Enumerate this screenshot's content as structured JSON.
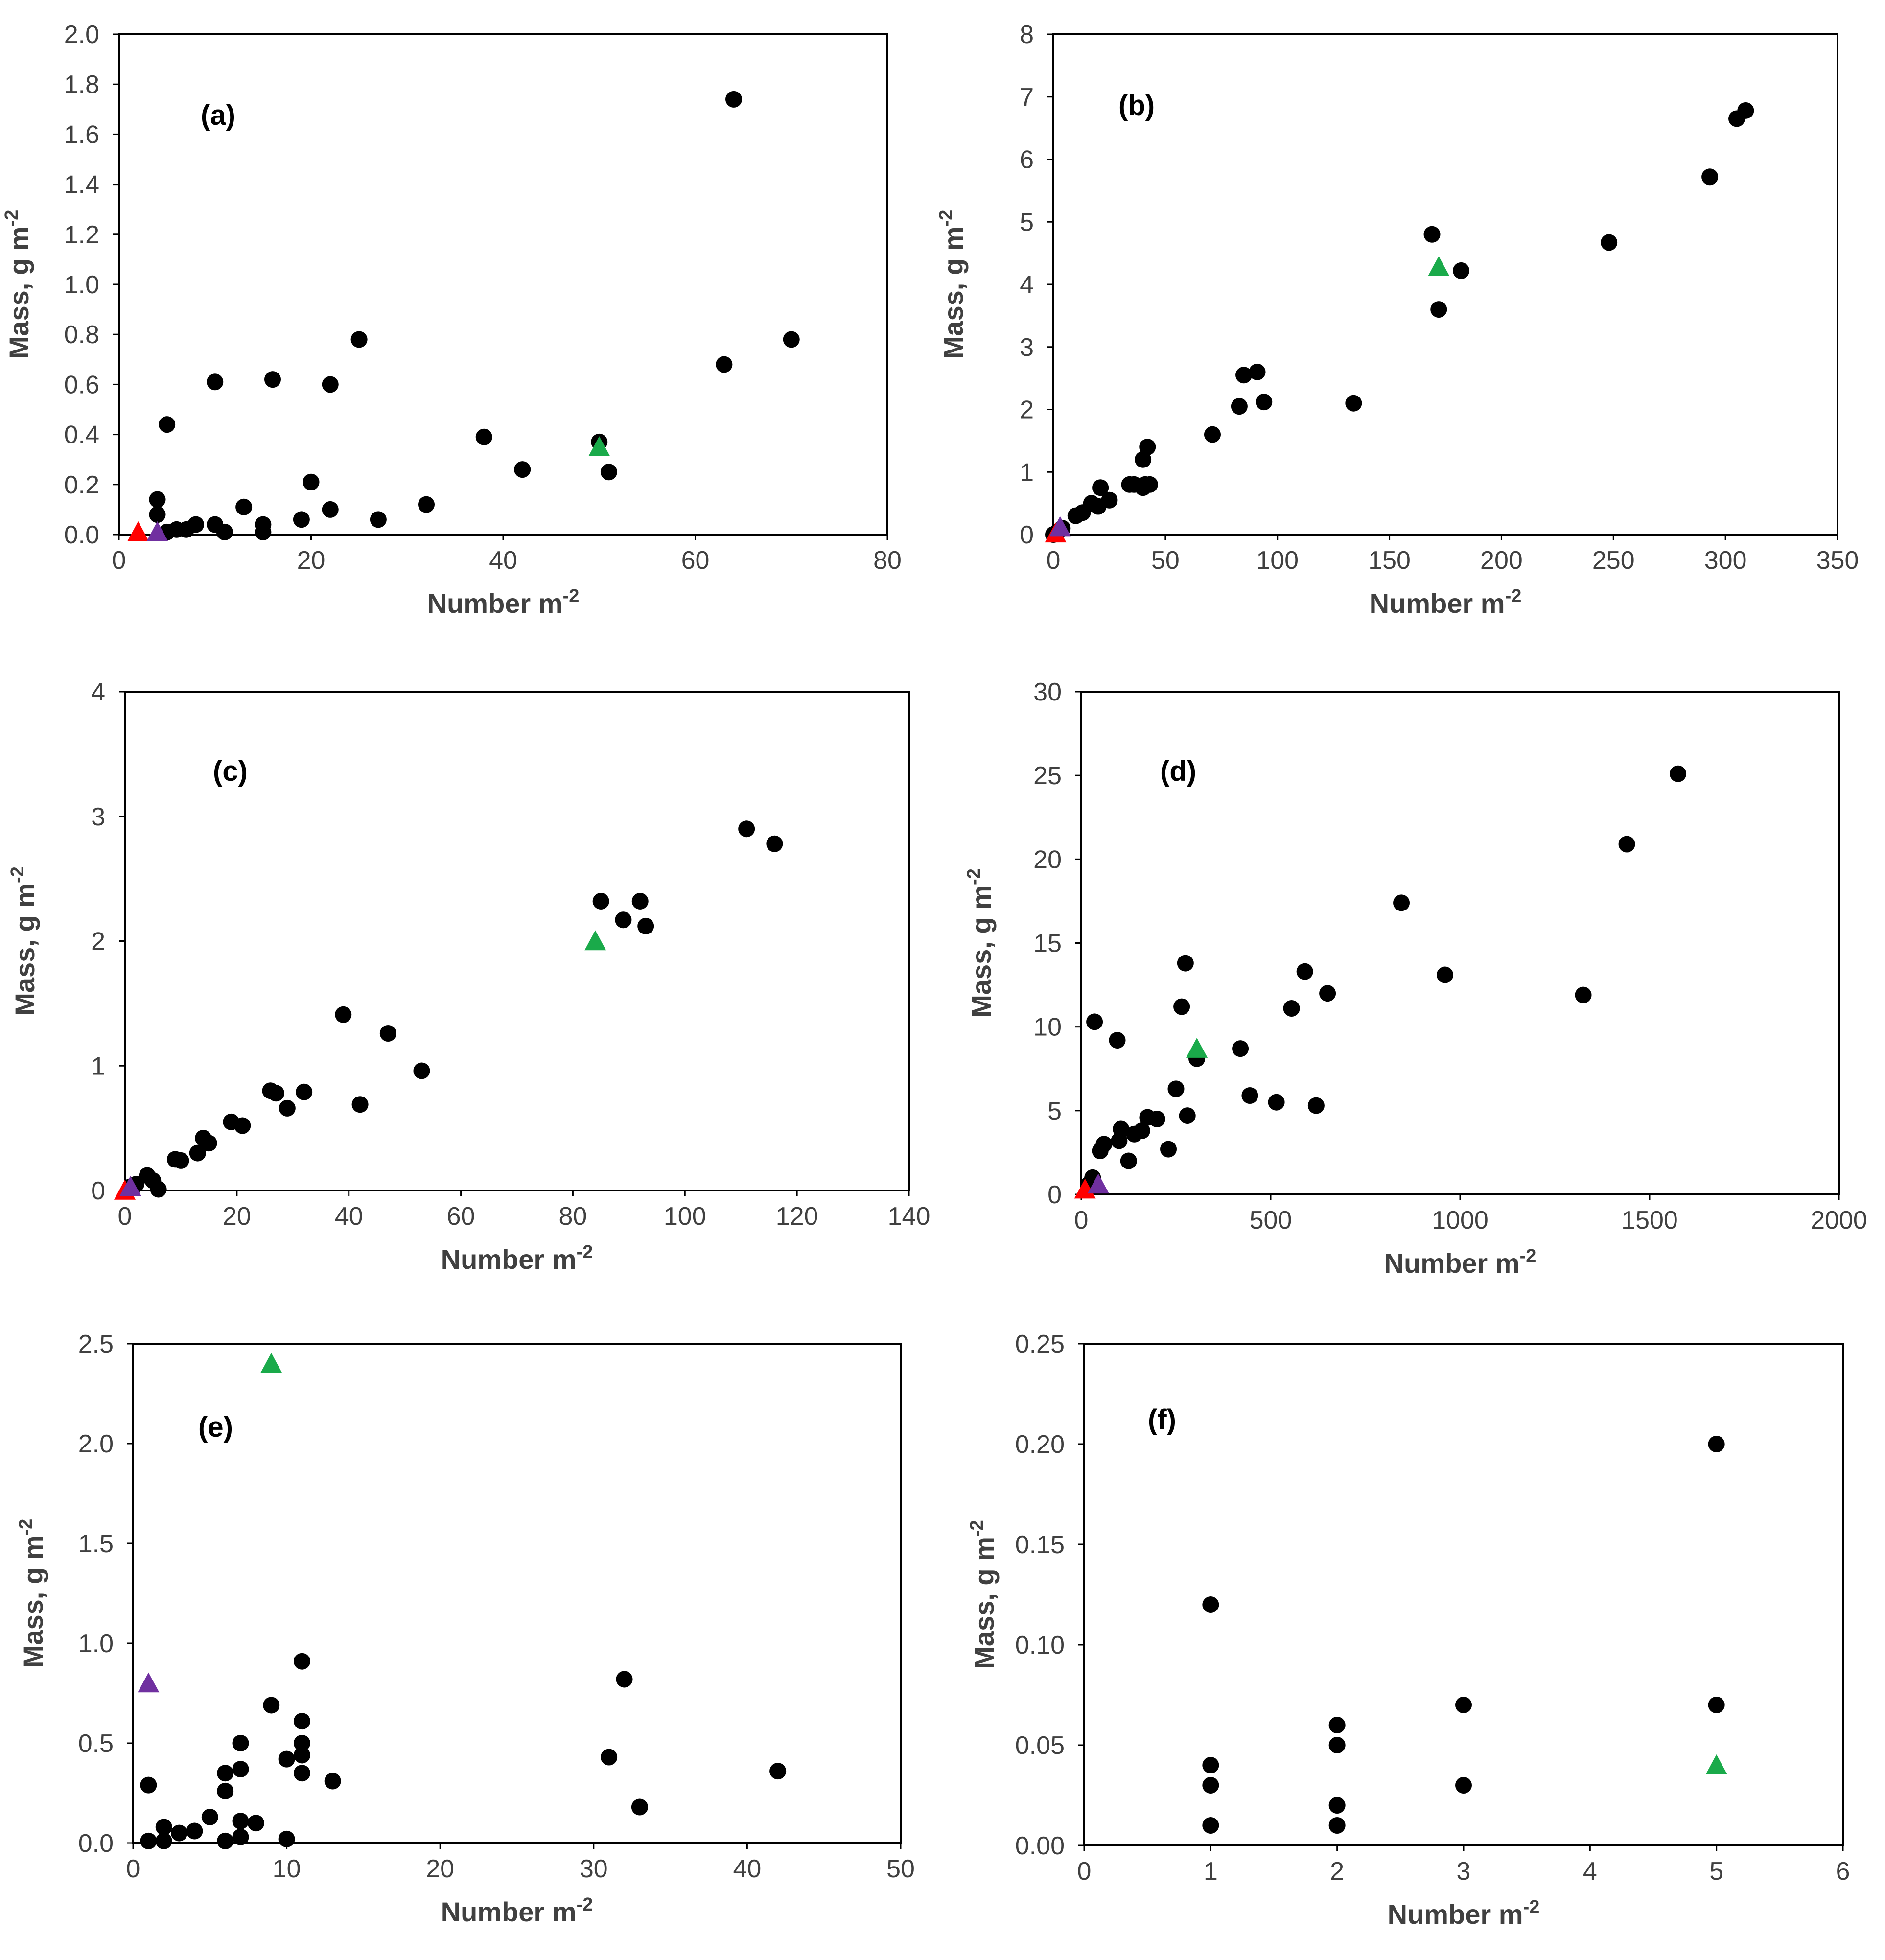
{
  "colors": {
    "circle": "#000000",
    "tri_green": "#1aaa4a",
    "tri_purple": "#7030a0",
    "tri_red": "#ff0000"
  },
  "chart_data": [
    {
      "type": "scatter",
      "panel_label": "(a)",
      "xlabel": "Number m",
      "xlabel_sup": "-2",
      "ylabel": "Mass, g m",
      "ylabel_sup": "-2",
      "xlim": [
        0,
        80
      ],
      "ylim": [
        0,
        2.0
      ],
      "xticks": [
        "0",
        "20",
        "40",
        "60",
        "80"
      ],
      "yticks": [
        "0.0",
        "0.2",
        "0.4",
        "0.6",
        "0.8",
        "1.0",
        "1.2",
        "1.4",
        "1.6",
        "1.8",
        "2.0"
      ],
      "circles": [
        [
          4,
          0.14
        ],
        [
          4,
          0.08
        ],
        [
          5,
          0.44
        ],
        [
          5,
          0.01
        ],
        [
          6,
          0.02
        ],
        [
          7,
          0.02
        ],
        [
          8,
          0.04
        ],
        [
          10,
          0.61
        ],
        [
          10,
          0.04
        ],
        [
          11,
          0.01
        ],
        [
          13,
          0.11
        ],
        [
          15,
          0.04
        ],
        [
          15,
          0.01
        ],
        [
          16,
          0.62
        ],
        [
          19,
          0.06
        ],
        [
          20,
          0.21
        ],
        [
          22,
          0.6
        ],
        [
          22,
          0.1
        ],
        [
          25,
          0.78
        ],
        [
          27,
          0.06
        ],
        [
          32,
          0.12
        ],
        [
          38,
          0.39
        ],
        [
          42,
          0.26
        ],
        [
          50,
          0.37
        ],
        [
          51,
          0.25
        ],
        [
          63,
          0.68
        ],
        [
          64,
          1.74
        ],
        [
          70,
          0.78
        ]
      ],
      "triangles_green": [
        [
          50,
          0.35
        ]
      ],
      "triangles_purple": [
        [
          4,
          0.01
        ]
      ],
      "triangles_red": [
        [
          2,
          0.01
        ]
      ]
    },
    {
      "type": "scatter",
      "panel_label": "(b)",
      "xlabel": "Number m",
      "xlabel_sup": "-2",
      "ylabel": "Mass, g m",
      "ylabel_sup": "-2",
      "xlim": [
        0,
        350
      ],
      "ylim": [
        0,
        8
      ],
      "xticks": [
        "0",
        "50",
        "100",
        "150",
        "200",
        "250",
        "300",
        "350"
      ],
      "yticks": [
        "0",
        "1",
        "2",
        "3",
        "4",
        "5",
        "6",
        "7",
        "8"
      ],
      "circles": [
        [
          0,
          0.0
        ],
        [
          2,
          0.05
        ],
        [
          4,
          0.1
        ],
        [
          10,
          0.3
        ],
        [
          13,
          0.35
        ],
        [
          17,
          0.5
        ],
        [
          20,
          0.45
        ],
        [
          21,
          0.75
        ],
        [
          25,
          0.55
        ],
        [
          34,
          0.8
        ],
        [
          36,
          0.8
        ],
        [
          40,
          0.75
        ],
        [
          40,
          1.2
        ],
        [
          41,
          0.8
        ],
        [
          42,
          1.4
        ],
        [
          43,
          0.8
        ],
        [
          71,
          1.6
        ],
        [
          83,
          2.05
        ],
        [
          85,
          2.55
        ],
        [
          91,
          2.6
        ],
        [
          94,
          2.12
        ],
        [
          134,
          2.1
        ],
        [
          169,
          4.8
        ],
        [
          172,
          3.6
        ],
        [
          182,
          4.22
        ],
        [
          248,
          4.67
        ],
        [
          293,
          5.72
        ],
        [
          305,
          6.65
        ],
        [
          309,
          6.78
        ]
      ],
      "triangles_green": [
        [
          172,
          4.28
        ]
      ],
      "triangles_purple": [
        [
          3,
          0.12
        ]
      ],
      "triangles_red": [
        [
          1,
          0.02
        ]
      ]
    },
    {
      "type": "scatter",
      "panel_label": "(c)",
      "xlabel": "Number m",
      "xlabel_sup": "-2",
      "ylabel": "Mass, g m",
      "ylabel_sup": "-2",
      "xlim": [
        0,
        140
      ],
      "ylim": [
        0,
        4
      ],
      "xticks": [
        "0",
        "20",
        "40",
        "60",
        "80",
        "100",
        "120",
        "140"
      ],
      "yticks": [
        "0",
        "1",
        "2",
        "3",
        "4"
      ],
      "circles": [
        [
          1,
          0.03
        ],
        [
          2,
          0.05
        ],
        [
          4,
          0.12
        ],
        [
          5,
          0.08
        ],
        [
          6,
          0.01
        ],
        [
          9,
          0.25
        ],
        [
          10,
          0.24
        ],
        [
          13,
          0.3
        ],
        [
          14,
          0.42
        ],
        [
          15,
          0.38
        ],
        [
          19,
          0.55
        ],
        [
          21,
          0.52
        ],
        [
          26,
          0.8
        ],
        [
          27,
          0.78
        ],
        [
          29,
          0.66
        ],
        [
          32,
          0.79
        ],
        [
          39,
          1.41
        ],
        [
          42,
          0.69
        ],
        [
          47,
          1.26
        ],
        [
          53,
          0.96
        ],
        [
          85,
          2.32
        ],
        [
          89,
          2.17
        ],
        [
          92,
          2.32
        ],
        [
          93,
          2.12
        ],
        [
          111,
          2.9
        ],
        [
          116,
          2.78
        ]
      ],
      "triangles_green": [
        [
          84,
          2.0
        ]
      ],
      "triangles_purple": [
        [
          1,
          0.03
        ]
      ],
      "triangles_red": [
        [
          0,
          0.0
        ]
      ]
    },
    {
      "type": "scatter",
      "panel_label": "(d)",
      "xlabel": "Number m",
      "xlabel_sup": "-2",
      "ylabel": "Mass, g m",
      "ylabel_sup": "-2",
      "xlim": [
        0,
        2000
      ],
      "ylim": [
        0,
        30
      ],
      "xticks": [
        "0",
        "500",
        "1000",
        "1500",
        "2000"
      ],
      "yticks": [
        "0",
        "5",
        "10",
        "15",
        "20",
        "25",
        "30"
      ],
      "circles": [
        [
          20,
          0.6
        ],
        [
          30,
          1.0
        ],
        [
          35,
          10.3
        ],
        [
          50,
          2.6
        ],
        [
          60,
          3.0
        ],
        [
          95,
          9.2
        ],
        [
          100,
          3.2
        ],
        [
          105,
          3.9
        ],
        [
          125,
          2.0
        ],
        [
          140,
          3.6
        ],
        [
          160,
          3.8
        ],
        [
          175,
          4.6
        ],
        [
          200,
          4.5
        ],
        [
          230,
          2.7
        ],
        [
          250,
          6.3
        ],
        [
          265,
          11.2
        ],
        [
          275,
          13.8
        ],
        [
          280,
          4.7
        ],
        [
          305,
          8.1
        ],
        [
          420,
          8.7
        ],
        [
          445,
          5.9
        ],
        [
          515,
          5.5
        ],
        [
          555,
          11.1
        ],
        [
          590,
          13.3
        ],
        [
          620,
          5.3
        ],
        [
          650,
          12.0
        ],
        [
          845,
          17.4
        ],
        [
          960,
          13.1
        ],
        [
          1325,
          11.9
        ],
        [
          1440,
          20.9
        ],
        [
          1575,
          25.1
        ]
      ],
      "triangles_green": [
        [
          305,
          8.7
        ]
      ],
      "triangles_purple": [
        [
          45,
          0.6
        ]
      ],
      "triangles_red": [
        [
          10,
          0.3
        ]
      ]
    },
    {
      "type": "scatter",
      "panel_label": "(e)",
      "xlabel": "Number m",
      "xlabel_sup": "-2",
      "ylabel": "Mass, g m",
      "ylabel_sup": "-2",
      "xlim": [
        0,
        50
      ],
      "ylim": [
        0,
        2.5
      ],
      "xticks": [
        "0",
        "10",
        "20",
        "30",
        "40",
        "50"
      ],
      "yticks": [
        "0.0",
        "0.5",
        "1.0",
        "1.5",
        "2.0",
        "2.5"
      ],
      "circles": [
        [
          1,
          0.29
        ],
        [
          1,
          0.01
        ],
        [
          2,
          0.08
        ],
        [
          2,
          0.01
        ],
        [
          3,
          0.05
        ],
        [
          4,
          0.06
        ],
        [
          5,
          0.13
        ],
        [
          6,
          0.35
        ],
        [
          6,
          0.26
        ],
        [
          6,
          0.01
        ],
        [
          7,
          0.5
        ],
        [
          7,
          0.37
        ],
        [
          7,
          0.11
        ],
        [
          7,
          0.03
        ],
        [
          8,
          0.1
        ],
        [
          9,
          0.69
        ],
        [
          10,
          0.42
        ],
        [
          10,
          0.02
        ],
        [
          11,
          0.91
        ],
        [
          11,
          0.61
        ],
        [
          11,
          0.5
        ],
        [
          11,
          0.44
        ],
        [
          11,
          0.35
        ],
        [
          13,
          0.31
        ],
        [
          31,
          0.43
        ],
        [
          32,
          0.82
        ],
        [
          33,
          0.18
        ],
        [
          42,
          0.36
        ]
      ],
      "triangles_green": [
        [
          9,
          2.4
        ]
      ],
      "triangles_purple": [
        [
          1,
          0.8
        ]
      ],
      "triangles_red": []
    },
    {
      "type": "scatter",
      "panel_label": "(f)",
      "xlabel": "Number m",
      "xlabel_sup": "-2",
      "ylabel": "Mass, g m",
      "ylabel_sup": "-2",
      "xlim": [
        0,
        6
      ],
      "ylim": [
        0,
        0.25
      ],
      "xticks": [
        "0",
        "1",
        "2",
        "3",
        "4",
        "5",
        "6"
      ],
      "yticks": [
        "0.00",
        "0.05",
        "0.10",
        "0.15",
        "0.20",
        "0.25"
      ],
      "circles": [
        [
          1,
          0.12
        ],
        [
          1,
          0.04
        ],
        [
          1,
          0.03
        ],
        [
          1,
          0.01
        ],
        [
          2,
          0.06
        ],
        [
          2,
          0.05
        ],
        [
          2,
          0.02
        ],
        [
          2,
          0.01
        ],
        [
          3,
          0.07
        ],
        [
          3,
          0.03
        ],
        [
          5,
          0.2
        ],
        [
          5,
          0.07
        ]
      ],
      "triangles_green": [
        [
          5,
          0.04
        ]
      ],
      "triangles_purple": [],
      "triangles_red": []
    }
  ]
}
